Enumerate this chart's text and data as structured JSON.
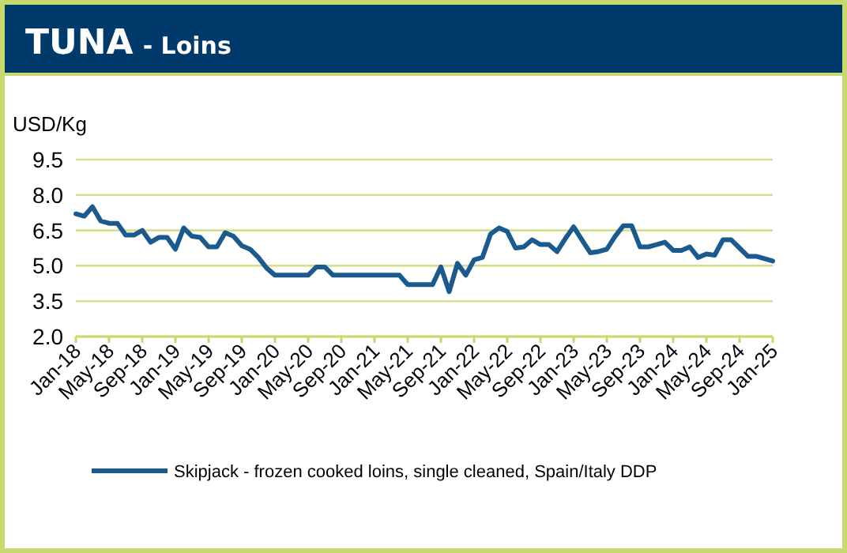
{
  "chart_data": {
    "type": "line",
    "title": "TUNA",
    "subtitle": "- Loins",
    "ylabel": "USD/Kg",
    "categories": [
      "Jan-18",
      null,
      null,
      null,
      "May-18",
      null,
      null,
      null,
      "Sep-18",
      null,
      null,
      null,
      "Jan-19",
      null,
      null,
      null,
      "May-19",
      null,
      null,
      null,
      "Sep-19",
      null,
      null,
      null,
      "Jan-20",
      null,
      null,
      null,
      "May-20",
      null,
      null,
      null,
      "Sep-20",
      null,
      null,
      null,
      "Jan-21",
      null,
      null,
      null,
      "May-21",
      null,
      null,
      null,
      "Sep-21",
      null,
      null,
      null,
      "Jan-22",
      null,
      null,
      null,
      "May-22",
      null,
      null,
      null,
      "Sep-22",
      null,
      null,
      null,
      "Jan-23",
      null,
      null,
      null,
      "May-23",
      null,
      null,
      null,
      "Sep-23",
      null,
      null,
      null,
      "Jan-24",
      null,
      null,
      null,
      "May-24",
      null,
      null,
      null,
      "Sep-24",
      null,
      null,
      null,
      "Jan-25"
    ],
    "series": [
      {
        "name": "Skipjack - frozen cooked loins, single cleaned, Spain/Italy DDP",
        "color": "#1a5a8e",
        "values": [
          7.2,
          7.1,
          7.5,
          6.9,
          6.8,
          6.8,
          6.3,
          6.3,
          6.5,
          6.0,
          6.2,
          6.2,
          5.7,
          6.6,
          6.25,
          6.2,
          5.8,
          5.8,
          6.4,
          6.25,
          5.85,
          5.7,
          5.35,
          4.9,
          4.6,
          4.6,
          4.6,
          4.6,
          4.6,
          4.95,
          4.95,
          4.6,
          4.6,
          4.6,
          4.6,
          4.6,
          4.6,
          4.6,
          4.6,
          4.6,
          4.2,
          4.2,
          4.2,
          4.2,
          4.95,
          3.9,
          5.1,
          4.6,
          5.25,
          5.35,
          6.35,
          6.6,
          6.45,
          5.75,
          5.8,
          6.1,
          5.9,
          5.9,
          5.6,
          6.15,
          6.65,
          6.1,
          5.55,
          5.6,
          5.7,
          6.25,
          6.7,
          6.7,
          5.8,
          5.8,
          5.9,
          6.0,
          5.65,
          5.65,
          5.8,
          5.35,
          5.5,
          5.45,
          6.1,
          6.1,
          5.75,
          5.4,
          5.4,
          5.3,
          5.2
        ]
      }
    ],
    "ylim": [
      2.0,
      9.5
    ],
    "yticks": [
      {
        "value": 2,
        "label": "2.0"
      },
      {
        "value": 3.5,
        "label": "3.5"
      },
      {
        "value": 5,
        "label": "5.0"
      },
      {
        "value": 6.5,
        "label": "6.5"
      },
      {
        "value": 8,
        "label": "8.0"
      },
      {
        "value": 9.5,
        "label": "9.5"
      }
    ],
    "grid": "y",
    "legend": "bottom",
    "marker": "none",
    "line_style": "solid"
  }
}
